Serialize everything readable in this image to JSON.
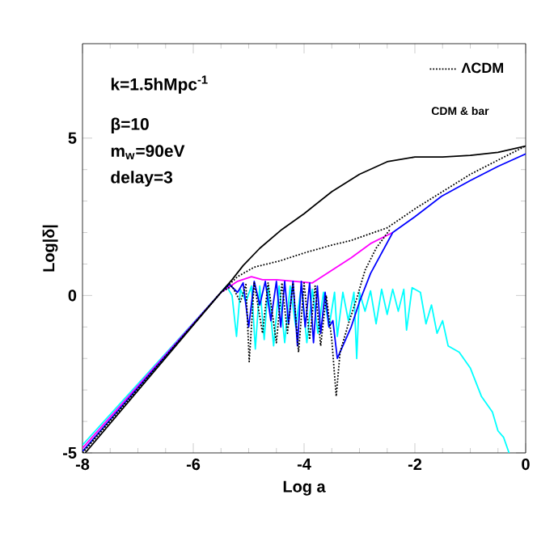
{
  "chart_data": {
    "type": "line",
    "xlabel": "Log a",
    "ylabel": "Log|δ|",
    "xlim": [
      -8,
      0
    ],
    "ylim": [
      -5,
      8
    ],
    "xticks": [
      -8,
      -6,
      -4,
      -2,
      0
    ],
    "yticks": [
      -5,
      0,
      5
    ],
    "legend": "top right",
    "marker": "none",
    "annotations": [
      "k=1.5hMpc$^{-1}$",
      "β=10",
      "m$_{w}$=90eV",
      "delay=3",
      "CDM & bar"
    ],
    "series": [
      {
        "color": "#00ffff",
        "line_style": "solid",
        "x": [
          -8,
          -5.5,
          -5.4,
          -5.3,
          -5.22,
          -5.15,
          -5.05,
          -4.95,
          -4.88,
          -4.8,
          -4.72,
          -4.65,
          -4.55,
          -4.45,
          -4.35,
          -4.25,
          -4.15,
          -4.05,
          -3.95,
          -3.85,
          -3.75,
          -3.65,
          -3.55,
          -3.45,
          -3.4,
          -3.3,
          -3.2,
          -3.1,
          -3.05,
          -3.0,
          -2.9,
          -2.8,
          -2.7,
          -2.6,
          -2.5,
          -2.4,
          -2.3,
          -2.2,
          -2.15,
          -2.05,
          -1.9,
          -1.8,
          -1.7,
          -1.6,
          -1.5,
          -1.4,
          -1.2,
          -1.0,
          -0.8,
          -0.6,
          -0.5,
          -0.4,
          -0.3
        ],
        "values": [
          -4.75,
          0.1,
          0.3,
          0.0,
          -1.3,
          0.2,
          -0.2,
          0.3,
          -1.7,
          0.3,
          -1.4,
          0.3,
          -1.6,
          0.3,
          -1.5,
          0.3,
          -1.0,
          0.3,
          -1.5,
          0.2,
          -1.2,
          0.1,
          -1.0,
          0.1,
          -1.3,
          0.1,
          -0.8,
          0.1,
          -2.0,
          0.1,
          -0.5,
          0.15,
          -0.9,
          0.2,
          -0.6,
          0.2,
          -0.5,
          0.2,
          -1.1,
          0.25,
          0.1,
          -0.9,
          -0.3,
          -1.2,
          -0.8,
          -1.6,
          -1.8,
          -2.3,
          -3.2,
          -3.7,
          -4.3,
          -4.5,
          -5.0
        ]
      },
      {
        "color": "#ff00ff",
        "line_style": "solid",
        "x": [
          -8,
          -5.5,
          -5.2,
          -4.95,
          -4.75,
          -4.5,
          -3.85,
          -3.5,
          -3.15,
          -2.8,
          -2.4
        ],
        "values": [
          -4.85,
          0.1,
          0.45,
          0.6,
          0.5,
          0.5,
          0.4,
          0.8,
          1.2,
          1.65,
          2.0
        ]
      },
      {
        "color": "#0000ff",
        "line_style": "solid",
        "x": [
          -8,
          -5.5,
          -5.35,
          -5.2,
          -5.1,
          -5.0,
          -4.9,
          -4.8,
          -4.7,
          -4.6,
          -4.5,
          -4.42,
          -4.35,
          -4.28,
          -4.2,
          -4.12,
          -4.05,
          -3.98,
          -3.9,
          -3.83,
          -3.76,
          -3.7,
          -3.62,
          -3.55,
          -3.48,
          -3.4,
          -3.3,
          -3.15,
          -3.0,
          -2.8,
          -2.4,
          -2.0,
          -1.52,
          -1,
          -0.5,
          0
        ],
        "values": [
          -4.95,
          0.1,
          0.35,
          0.1,
          0.4,
          -1.0,
          0.45,
          -0.3,
          0.45,
          -0.8,
          0.45,
          -1.0,
          0.45,
          -0.9,
          0.45,
          -1.6,
          0.45,
          -1.0,
          0.4,
          -1.5,
          0.3,
          -1.2,
          0.1,
          -1.0,
          -0.8,
          -2.0,
          -1.6,
          -1.0,
          -0.2,
          0.7,
          2.0,
          2.5,
          3.15,
          3.65,
          4.1,
          4.5
        ]
      },
      {
        "color": "#000000",
        "line_style": "dotted",
        "x": [
          -8,
          -5.5,
          -5.3,
          -5.15,
          -5.05,
          -4.99,
          -4.9,
          -4.75,
          -4.65,
          -4.5,
          -4.4,
          -4.3,
          -4.2,
          -4.1,
          -4.0,
          -3.9,
          -3.8,
          -3.7,
          -3.6,
          -3.5,
          -3.42,
          -3.35,
          -3.2,
          -3.05,
          -2.9,
          -2.7,
          -2.45
        ],
        "values": [
          -5.0,
          0.1,
          0.3,
          -0.2,
          0.35,
          -2.1,
          0.4,
          -1.2,
          0.4,
          -1.5,
          0.4,
          -1.2,
          0.4,
          -1.8,
          0.4,
          -1.4,
          0.3,
          -1.6,
          0.0,
          -1.4,
          -3.2,
          -1.8,
          -0.9,
          -0.1,
          0.8,
          1.5,
          2.1
        ]
      },
      {
        "name": "ΛCDM",
        "color": "#000000",
        "line_style": "dotted",
        "x": [
          -8,
          -5.5,
          -5.2,
          -4.9,
          -4.44,
          -4,
          -3.5,
          -3.15,
          -2.5,
          -2,
          -1.5,
          -1,
          -0.5,
          0
        ],
        "values": [
          -5.0,
          0.1,
          0.6,
          0.9,
          1.1,
          1.35,
          1.6,
          1.75,
          2.15,
          2.75,
          3.3,
          3.85,
          4.3,
          4.75
        ]
      },
      {
        "color": "#000000",
        "line_style": "solid",
        "x": [
          -7.95,
          -5.5,
          -5.3,
          -5.1,
          -4.8,
          -4.4,
          -4,
          -3.5,
          -3,
          -2.5,
          -2,
          -1.5,
          -1,
          -0.5,
          0
        ],
        "values": [
          -5.0,
          0.1,
          0.5,
          0.95,
          1.5,
          2.1,
          2.6,
          3.3,
          3.85,
          4.25,
          4.4,
          4.4,
          4.45,
          4.55,
          4.75
        ]
      }
    ]
  }
}
